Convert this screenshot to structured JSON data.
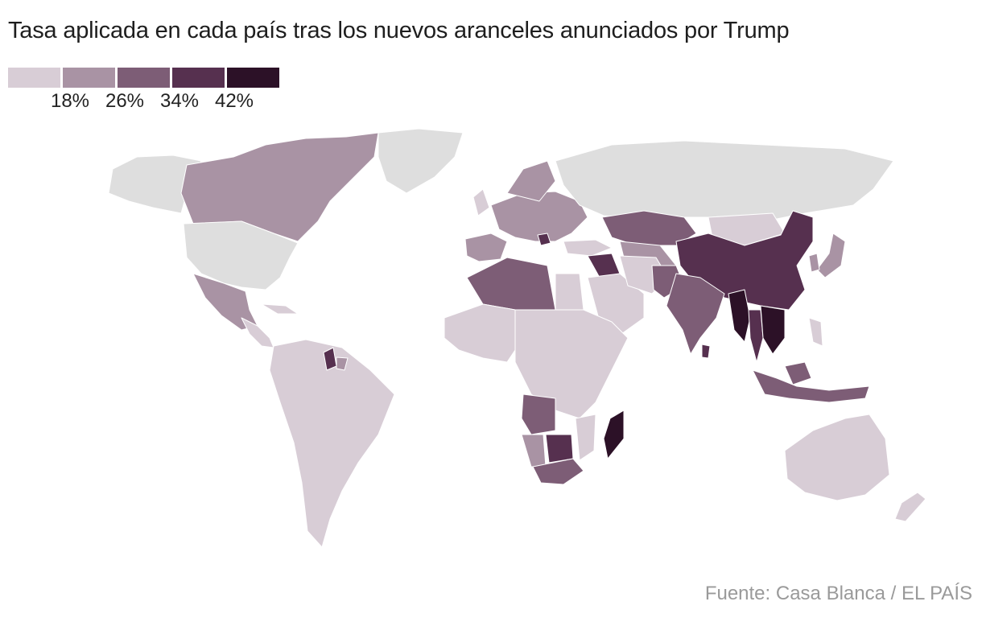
{
  "title": "Tasa aplicada en cada país tras los nuevos aranceles anunciados por Trump",
  "source": "Fuente: Casa Blanca / EL PAÍS",
  "legend": {
    "colors": [
      "#d8cdd6",
      "#a993a4",
      "#7d5d76",
      "#56304f",
      "#2c1127"
    ],
    "breaks": [
      "18%",
      "26%",
      "34%",
      "42%"
    ]
  },
  "colors": {
    "no_data": "#dedede",
    "tier1": "#d8cdd6",
    "tier2": "#a993a4",
    "tier3": "#7d5d76",
    "tier4": "#56304f",
    "tier5": "#2c1127"
  }
}
